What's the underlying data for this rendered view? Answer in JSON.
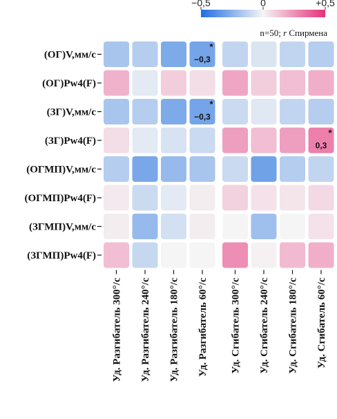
{
  "chart_data": {
    "type": "heatmap",
    "note": {
      "prefix": "n=50; ",
      "italic": "r",
      "suffix": " Спирмена"
    },
    "colorbar": {
      "min": -0.5,
      "max": 0.5,
      "ticks": [
        {
          "value": -0.5,
          "label": "−0,5"
        },
        {
          "value": 0,
          "label": "0"
        },
        {
          "value": 0.5,
          "label": "+0,5"
        }
      ],
      "colors": {
        "neg": "#1f6fe0",
        "mid": "#f5f5f5",
        "pos": "#e6307a"
      }
    },
    "rows": [
      "(ОГ)V,мм/с",
      "(ОГ)Pw4(F)",
      "(ЗГ)V,мм/с",
      "(ЗГ)Pw4(F)",
      "(ОГМП)V,мм/с",
      "(ОГМП)Pw4(F)",
      "(ЗГМП)V,мм/с",
      "(ЗГМП)Pw4(F)"
    ],
    "columns": [
      "Уд. Разгибатель 300°/с",
      "Уд. Разгибатель 240°/с",
      "Уд. Разгибатель 180°/с",
      "Уд. Разгибатель 60°/с",
      "Уд. Сгибатель 300°/с",
      "Уд. Сгибатель 240°/с",
      "Уд. Сгибатель 180°/с",
      "Уд. Сгибатель 60°/с"
    ],
    "values": [
      [
        -0.18,
        -0.15,
        -0.28,
        -0.3,
        -0.12,
        -0.06,
        -0.12,
        -0.15
      ],
      [
        0.17,
        -0.04,
        0.1,
        0.06,
        0.2,
        0.1,
        0.14,
        0.18
      ],
      [
        -0.18,
        -0.15,
        -0.28,
        -0.3,
        -0.1,
        -0.05,
        -0.12,
        -0.15
      ],
      [
        0.06,
        -0.04,
        -0.07,
        -0.1,
        0.22,
        0.14,
        0.22,
        0.3
      ],
      [
        -0.15,
        -0.29,
        -0.22,
        -0.18,
        -0.1,
        -0.31,
        -0.15,
        -0.12
      ],
      [
        0.03,
        -0.1,
        -0.04,
        0.02,
        0.09,
        0.05,
        0.04,
        0.07
      ],
      [
        0.02,
        -0.22,
        -0.08,
        0.02,
        0.0,
        -0.2,
        0.0,
        0.05
      ],
      [
        0.14,
        -0.11,
        0.0,
        0.0,
        0.26,
        0.01,
        0.15,
        0.18
      ]
    ],
    "significant": [
      {
        "row": 0,
        "col": 3,
        "star": "*",
        "label": "−0,3"
      },
      {
        "row": 2,
        "col": 3,
        "star": "*",
        "label": "−0,3"
      },
      {
        "row": 3,
        "col": 7,
        "star": "*",
        "label": "0,3"
      }
    ]
  }
}
